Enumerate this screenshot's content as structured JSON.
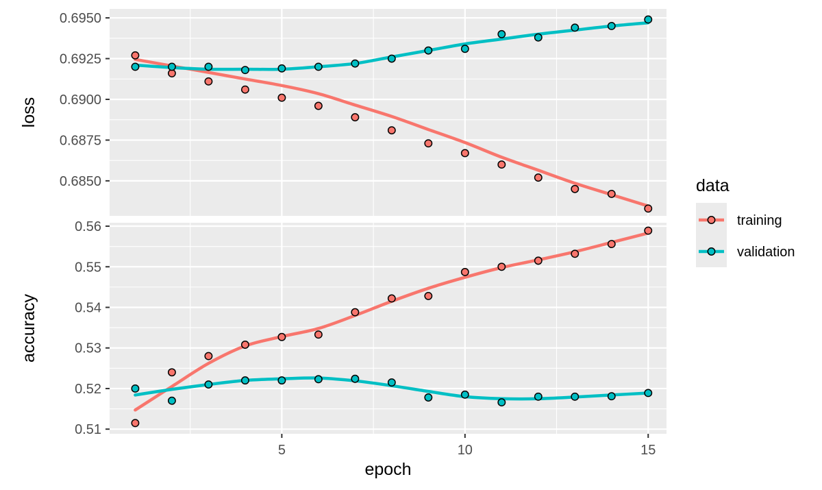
{
  "chart_data": {
    "type": "line",
    "facets": [
      {
        "name": "loss",
        "ylabel": "loss",
        "ylim": [
          0.68285,
          0.69555
        ],
        "yticks": [
          0.685,
          0.6875,
          0.69,
          0.6925,
          0.695
        ],
        "ytick_labels": [
          "0.6850",
          "0.6875",
          "0.6900",
          "0.6925",
          "0.6950"
        ],
        "series": [
          {
            "name": "training",
            "points": [
              0.6927,
              0.6916,
              0.6911,
              0.6906,
              0.6901,
              0.6896,
              0.6889,
              0.6881,
              0.6873,
              0.6867,
              0.686,
              0.6852,
              0.6845,
              0.6842,
              0.6833
            ],
            "smooth": [
              0.69245,
              0.69205,
              0.69165,
              0.69125,
              0.69085,
              0.69035,
              0.68965,
              0.68895,
              0.68815,
              0.68735,
              0.68645,
              0.68565,
              0.68485,
              0.68415,
              0.68345
            ]
          },
          {
            "name": "validation",
            "points": [
              0.692,
              0.692,
              0.692,
              0.6918,
              0.6919,
              0.692,
              0.6922,
              0.6925,
              0.693,
              0.6931,
              0.694,
              0.6938,
              0.6944,
              0.6945,
              0.6949
            ],
            "smooth": [
              0.6921,
              0.69195,
              0.69185,
              0.69185,
              0.69185,
              0.692,
              0.6922,
              0.6926,
              0.693,
              0.6934,
              0.6937,
              0.694,
              0.69425,
              0.6945,
              0.6947
            ]
          }
        ]
      },
      {
        "name": "accuracy",
        "ylabel": "accuracy",
        "ylim": [
          0.50885,
          0.56085
        ],
        "yticks": [
          0.51,
          0.52,
          0.53,
          0.54,
          0.55,
          0.56
        ],
        "ytick_labels": [
          "0.51",
          "0.52",
          "0.53",
          "0.54",
          "0.55",
          "0.56"
        ],
        "series": [
          {
            "name": "training",
            "points": [
              0.5115,
              0.524,
              0.528,
              0.5308,
              0.5327,
              0.5333,
              0.5388,
              0.5422,
              0.5428,
              0.5487,
              0.55,
              0.5515,
              0.5532,
              0.5556,
              0.5589
            ],
            "smooth": [
              0.5147,
              0.5205,
              0.5262,
              0.5305,
              0.5328,
              0.5348,
              0.538,
              0.5415,
              0.5447,
              0.5474,
              0.5498,
              0.5517,
              0.5537,
              0.556,
              0.5583
            ]
          },
          {
            "name": "validation",
            "points": [
              0.52,
              0.517,
              0.521,
              0.522,
              0.522,
              0.5223,
              0.5224,
              0.5215,
              0.5178,
              0.5185,
              0.5166,
              0.518,
              0.518,
              0.5181,
              0.5189
            ],
            "smooth": [
              0.5184,
              0.5198,
              0.521,
              0.522,
              0.5224,
              0.5226,
              0.5219,
              0.5207,
              0.5193,
              0.518,
              0.5175,
              0.5175,
              0.5179,
              0.5184,
              0.5189
            ]
          }
        ]
      }
    ],
    "x": [
      1,
      2,
      3,
      4,
      5,
      6,
      7,
      8,
      9,
      10,
      11,
      12,
      13,
      14,
      15
    ],
    "xlim": [
      0.3,
      15.5
    ],
    "xticks": [
      5,
      10,
      15
    ],
    "xtick_labels": [
      "5",
      "10",
      "15"
    ],
    "xlabel": "epoch",
    "legend": {
      "title": "data",
      "position": "right",
      "entries": [
        "training",
        "validation"
      ]
    },
    "colors": {
      "training": "#F8766D",
      "validation": "#00BFC4",
      "panel_bg": "#EBEBEB",
      "grid": "#FFFFFF",
      "point_stroke": "#000000"
    },
    "grid": true
  }
}
